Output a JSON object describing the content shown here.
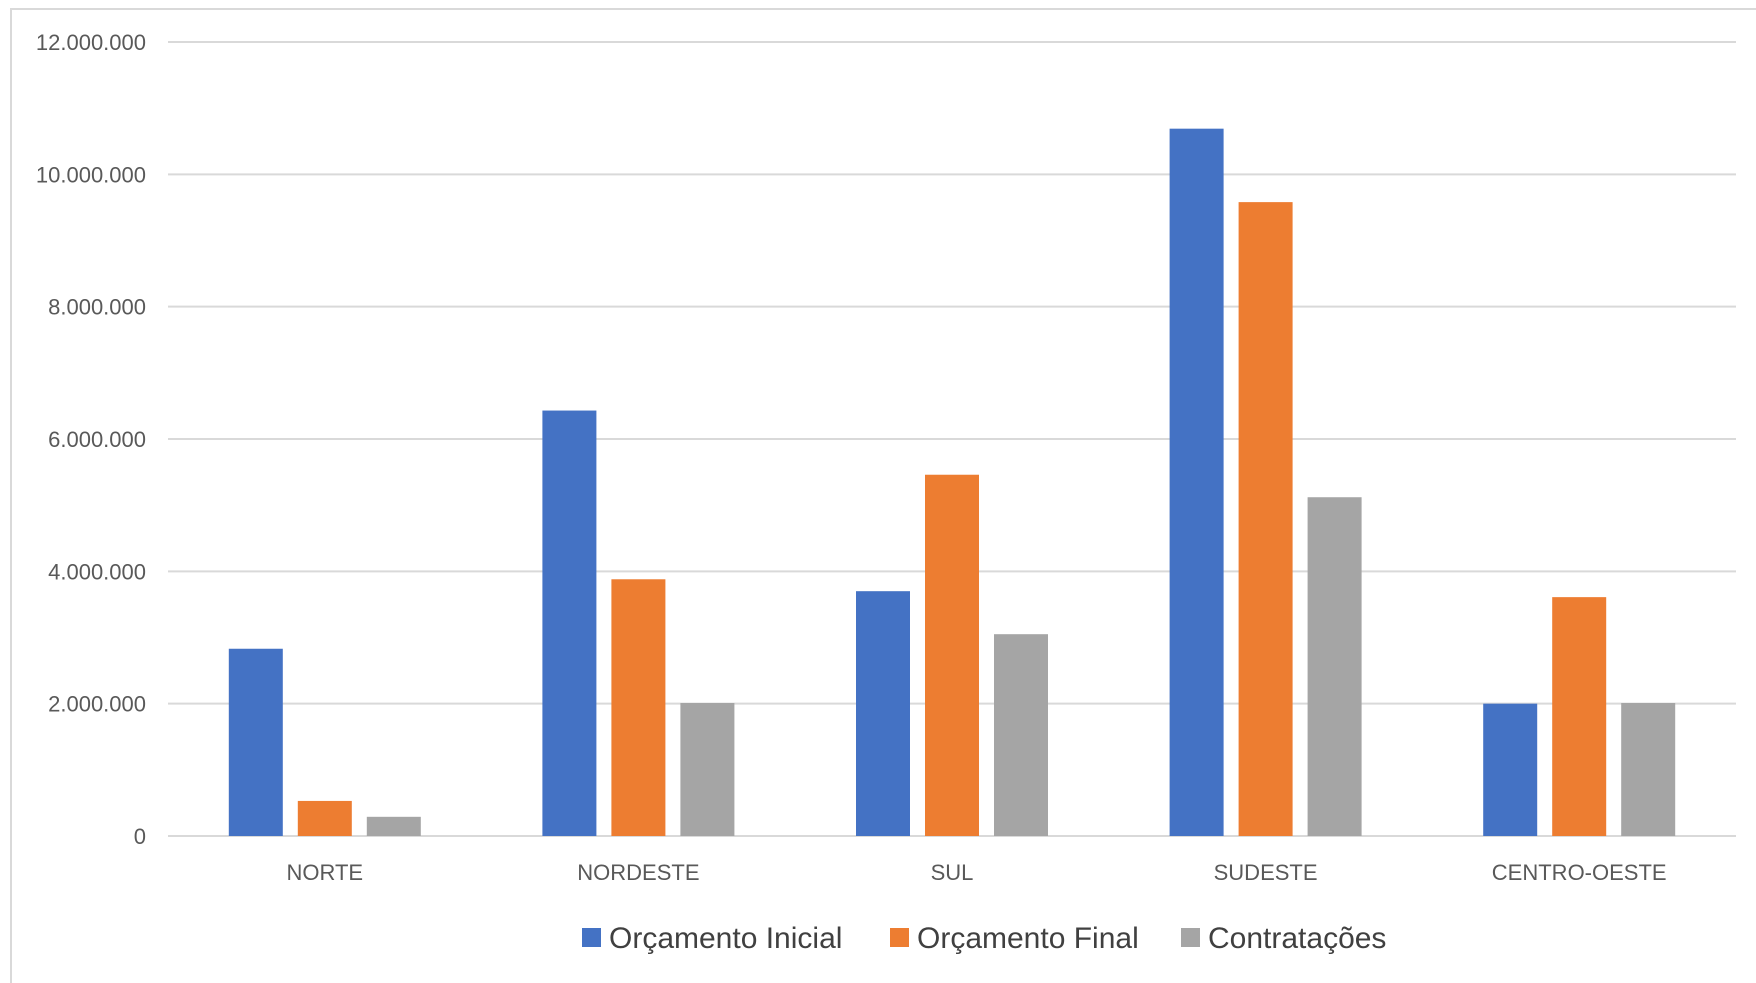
{
  "chart_data": {
    "type": "bar",
    "title": "",
    "xlabel": "",
    "ylabel": "",
    "categories": [
      "NORTE",
      "NORDESTE",
      "SUL",
      "SUDESTE",
      "CENTRO-OESTE"
    ],
    "series": [
      {
        "name": "Orçamento Inicial",
        "color": "#4472c4",
        "values": [
          2830000,
          6430000,
          3700000,
          10690000,
          2000000
        ]
      },
      {
        "name": "Orçamento Final",
        "color": "#ed7d31",
        "values": [
          530000,
          3880000,
          5460000,
          9580000,
          3610000
        ]
      },
      {
        "name": "Contratações",
        "color": "#a5a5a5",
        "values": [
          290000,
          2010000,
          3050000,
          5120000,
          2010000
        ]
      }
    ],
    "ylim": [
      0,
      12000000
    ],
    "yticks": [
      0,
      2000000,
      4000000,
      6000000,
      8000000,
      10000000,
      12000000
    ],
    "ytick_labels": [
      "0",
      "2.000.000",
      "4.000.000",
      "6.000.000",
      "8.000.000",
      "10.000.000",
      "12.000.000"
    ],
    "grid": true,
    "legend_position": "bottom",
    "gridline_color": "#d9d9d9"
  }
}
